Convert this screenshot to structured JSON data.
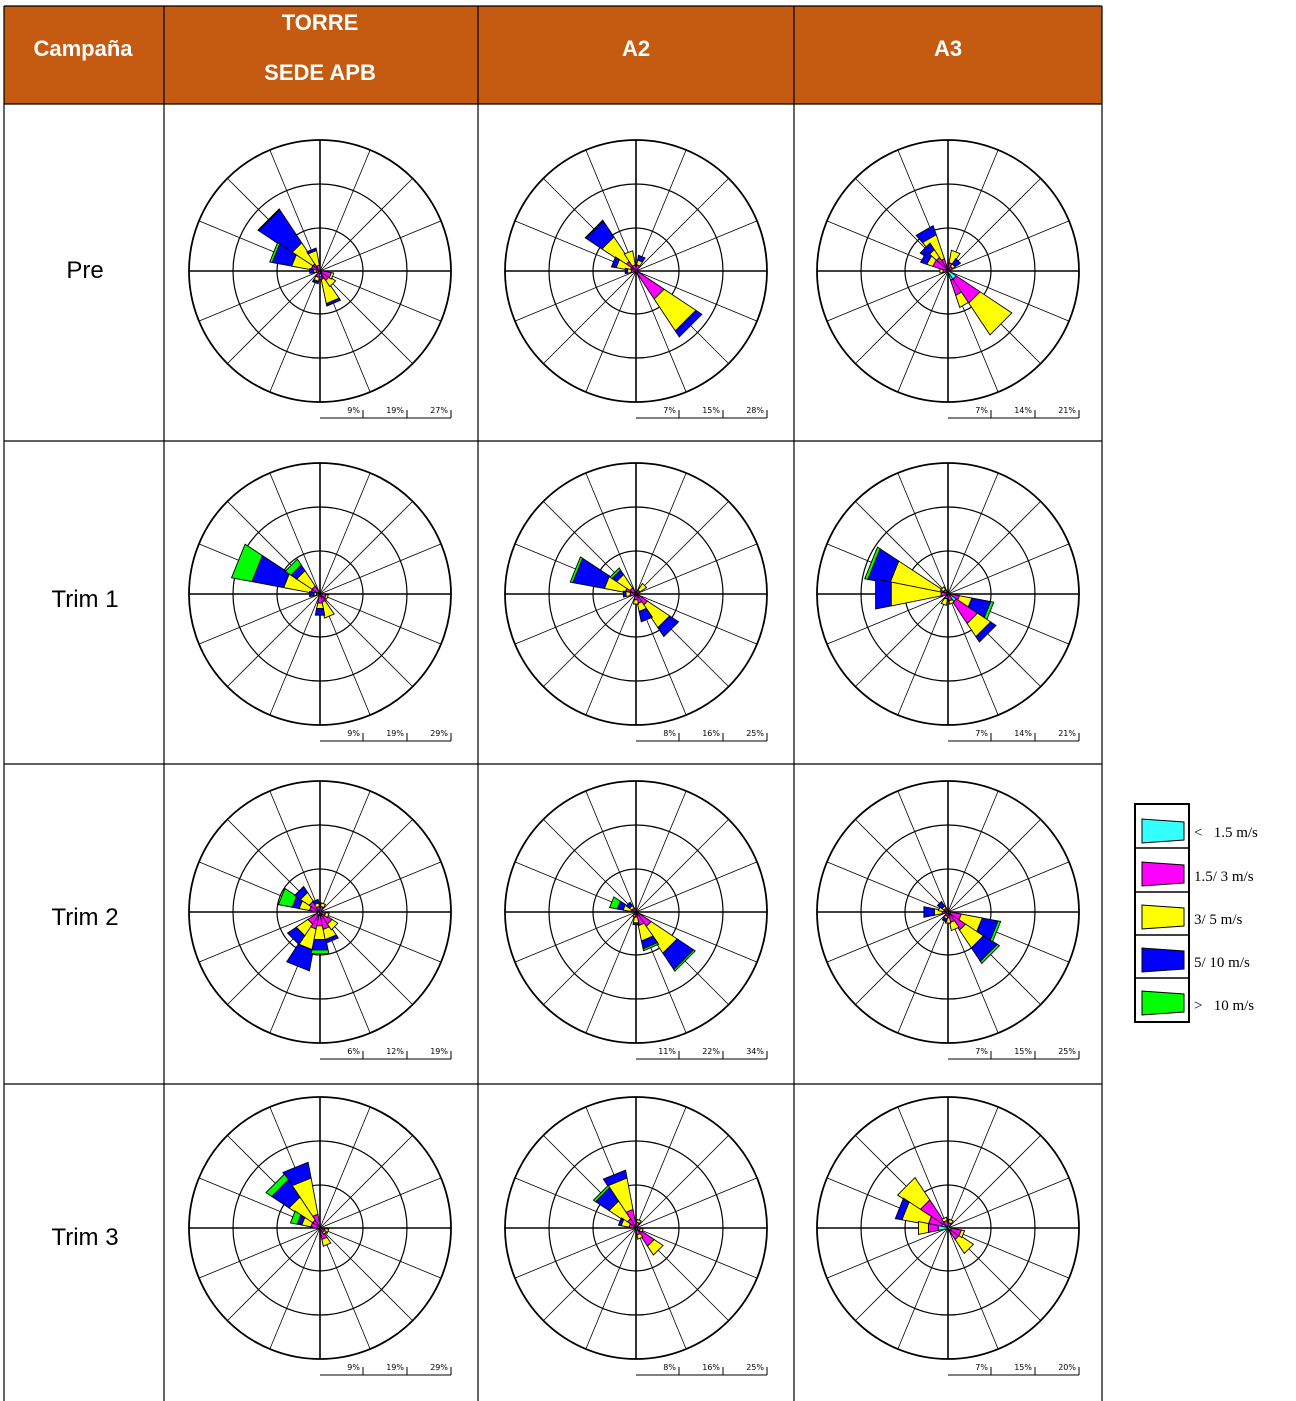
{
  "colors": {
    "header_bg": "#c55a11",
    "calm": "#33ffff",
    "low": "#ff00ff",
    "mid": "#ffff00",
    "high": "#0000ff",
    "top": "#00ff00"
  },
  "header": {
    "campaign": "Campaña",
    "torre_line1": "TORRE",
    "torre_line2": "SEDE APB",
    "a2": "A2",
    "a3": "A3"
  },
  "rows": [
    "Pre",
    "Trim 1",
    "Trim 2",
    "Trim 3"
  ],
  "legend": [
    {
      "label": "<   1.5 m/s",
      "color": "#33ffff"
    },
    {
      "label": "1.5/ 3 m/s",
      "color": "#ff00ff"
    },
    {
      "label": "3/ 5 m/s",
      "color": "#ffff00"
    },
    {
      "label": "5/ 10 m/s",
      "color": "#0000ff"
    },
    {
      "label": ">   10 m/s",
      "color": "#00ff00"
    }
  ],
  "chart_data": [
    {
      "type": "wind-rose",
      "campaign": "Pre",
      "station": "TORRE SEDE APB",
      "scale_labels": [
        "9%",
        "19%",
        "27%"
      ],
      "rmax": 27,
      "dirs": [
        {
          "d": 315,
          "v": [
            0.3,
            1.5,
            5,
            8,
            0.2
          ]
        },
        {
          "d": 292,
          "v": [
            0.3,
            1.5,
            4,
            4,
            0.5
          ]
        },
        {
          "d": 338,
          "v": [
            0.2,
            1,
            3,
            0.5,
            0
          ]
        },
        {
          "d": 157,
          "v": [
            0.2,
            1.5,
            5,
            0.5,
            0
          ]
        },
        {
          "d": 135,
          "v": [
            0.2,
            2,
            1.5,
            0,
            0
          ]
        },
        {
          "d": 112,
          "v": [
            0.3,
            2,
            0.5,
            0,
            0
          ]
        },
        {
          "d": 180,
          "v": [
            1.2,
            0.5,
            0,
            0,
            0
          ]
        },
        {
          "d": 202,
          "v": [
            0.5,
            0.8,
            0.8,
            0.5,
            0
          ]
        },
        {
          "d": 270,
          "v": [
            0.3,
            0.5,
            0.5,
            0.8,
            0
          ]
        }
      ]
    },
    {
      "type": "wind-rose",
      "campaign": "Pre",
      "station": "A2",
      "scale_labels": [
        "7%",
        "15%",
        "28%"
      ],
      "rmax": 28,
      "dirs": [
        {
          "d": 315,
          "v": [
            0.5,
            2,
            6,
            4,
            0.2
          ]
        },
        {
          "d": 338,
          "v": [
            0.3,
            1,
            3,
            0,
            0
          ]
        },
        {
          "d": 135,
          "v": [
            0.5,
            6.5,
            8,
            1.5,
            0
          ]
        },
        {
          "d": 292,
          "v": [
            0.2,
            1,
            3,
            1,
            0
          ]
        },
        {
          "d": 22,
          "v": [
            0.3,
            1,
            1,
            1,
            0
          ]
        },
        {
          "d": 270,
          "v": [
            0.2,
            0.8,
            0.8,
            0.5,
            0
          ]
        }
      ]
    },
    {
      "type": "wind-rose",
      "campaign": "Pre",
      "station": "A3",
      "scale_labels": [
        "7%",
        "14%",
        "21%"
      ],
      "rmax": 21,
      "dirs": [
        {
          "d": 330,
          "v": [
            0.5,
            1.5,
            4,
            1.5,
            0
          ]
        },
        {
          "d": 315,
          "v": [
            0.5,
            2,
            1.5,
            1.2,
            0
          ]
        },
        {
          "d": 300,
          "v": [
            0.5,
            2,
            1,
            1,
            0
          ]
        },
        {
          "d": 22,
          "v": [
            0.3,
            1,
            2,
            0,
            0
          ]
        },
        {
          "d": 45,
          "v": [
            0.3,
            0.5,
            0.5,
            1,
            0
          ]
        },
        {
          "d": 150,
          "v": [
            1.5,
            2.5,
            2,
            0,
            0
          ]
        },
        {
          "d": 135,
          "v": [
            1.5,
            4.5,
            6,
            0,
            0
          ]
        },
        {
          "d": 270,
          "v": [
            0.3,
            0.5,
            0.5,
            0,
            0
          ]
        }
      ]
    },
    {
      "type": "wind-rose",
      "campaign": "Trim 1",
      "station": "TORRE SEDE APB",
      "scale_labels": [
        "9%",
        "19%",
        "29%"
      ],
      "rmax": 29,
      "dirs": [
        {
          "d": 292,
          "v": [
            0.5,
            1.5,
            6,
            7,
            4.5
          ]
        },
        {
          "d": 315,
          "v": [
            0.5,
            1.5,
            4,
            1.5,
            1.5
          ]
        },
        {
          "d": 157,
          "v": [
            0.3,
            1.5,
            3.5,
            0,
            0
          ]
        },
        {
          "d": 180,
          "v": [
            0.5,
            1.5,
            1.2,
            1.5,
            0
          ]
        },
        {
          "d": 112,
          "v": [
            0.3,
            1,
            0.5,
            0,
            0
          ]
        },
        {
          "d": 270,
          "v": [
            0.3,
            0.5,
            0.5,
            1,
            0
          ]
        }
      ]
    },
    {
      "type": "wind-rose",
      "campaign": "Trim 1",
      "station": "A2",
      "scale_labels": [
        "8%",
        "16%",
        "25%"
      ],
      "rmax": 25,
      "dirs": [
        {
          "d": 292,
          "v": [
            0.5,
            1.5,
            4,
            6,
            0.5
          ]
        },
        {
          "d": 315,
          "v": [
            0.3,
            1,
            3,
            1,
            0.5
          ]
        },
        {
          "d": 135,
          "v": [
            0.5,
            2,
            5,
            2,
            0
          ]
        },
        {
          "d": 157,
          "v": [
            0.3,
            1.5,
            1.5,
            2,
            0
          ]
        },
        {
          "d": 180,
          "v": [
            0.3,
            0.8,
            0.8,
            0,
            0
          ]
        },
        {
          "d": 45,
          "v": [
            0.3,
            0.5,
            1.5,
            0,
            0
          ]
        },
        {
          "d": 270,
          "v": [
            0.3,
            0.8,
            0.8,
            0.5,
            0
          ]
        }
      ]
    },
    {
      "type": "wind-rose",
      "campaign": "Trim 1",
      "station": "A3",
      "scale_labels": [
        "7%",
        "14%",
        "21%"
      ],
      "rmax": 21,
      "dirs": [
        {
          "d": 292,
          "v": [
            0.3,
            1,
            8,
            3.5,
            0.5
          ]
        },
        {
          "d": 270,
          "v": [
            0.3,
            0.8,
            8,
            2.5,
            0
          ]
        },
        {
          "d": 112,
          "v": [
            0.3,
            1.5,
            2,
            3,
            0.5
          ]
        },
        {
          "d": 135,
          "v": [
            1.5,
            4,
            2.5,
            1,
            0
          ]
        },
        {
          "d": 315,
          "v": [
            0.3,
            0.5,
            0.5,
            0,
            0
          ]
        },
        {
          "d": 202,
          "v": [
            0.3,
            0.5,
            1,
            0,
            0
          ]
        },
        {
          "d": 157,
          "v": [
            0.3,
            0.8,
            0.5,
            0,
            0
          ]
        }
      ]
    },
    {
      "type": "wind-rose",
      "campaign": "Trim 2",
      "station": "TORRE SEDE APB",
      "scale_labels": [
        "6%",
        "12%",
        "19%"
      ],
      "rmax": 19,
      "dirs": [
        {
          "d": 202,
          "v": [
            0.5,
            2,
            3,
            3,
            0
          ]
        },
        {
          "d": 180,
          "v": [
            0.5,
            1.5,
            2,
            1.5,
            0.5
          ]
        },
        {
          "d": 292,
          "v": [
            0.5,
            1,
            1.5,
            1,
            2
          ]
        },
        {
          "d": 315,
          "v": [
            0.3,
            1.5,
            1.5,
            1,
            0
          ]
        },
        {
          "d": 225,
          "v": [
            0.5,
            1.5,
            2,
            1.5,
            0
          ]
        },
        {
          "d": 157,
          "v": [
            0.5,
            2,
            1.5,
            0.5,
            0
          ]
        },
        {
          "d": 135,
          "v": [
            0.5,
            1.5,
            1,
            0,
            0
          ]
        },
        {
          "d": 112,
          "v": [
            0.3,
            0.5,
            0.5,
            0,
            0
          ]
        },
        {
          "d": 338,
          "v": [
            0.3,
            0.5,
            0.5,
            0.5,
            0
          ]
        },
        {
          "d": 22,
          "v": [
            0.3,
            0.5,
            0.5,
            0,
            0
          ]
        }
      ]
    },
    {
      "type": "wind-rose",
      "campaign": "Trim 2",
      "station": "A2",
      "scale_labels": [
        "11%",
        "22%",
        "34%"
      ],
      "rmax": 34,
      "dirs": [
        {
          "d": 135,
          "v": [
            0.5,
            4,
            8,
            5,
            0.5
          ]
        },
        {
          "d": 157,
          "v": [
            0.5,
            3,
            4,
            2,
            0.5
          ]
        },
        {
          "d": 292,
          "v": [
            0.3,
            1,
            2,
            1.5,
            2
          ]
        },
        {
          "d": 315,
          "v": [
            0.3,
            0.8,
            0.8,
            1,
            0
          ]
        },
        {
          "d": 180,
          "v": [
            0.3,
            1,
            1.5,
            0.5,
            0
          ]
        },
        {
          "d": 202,
          "v": [
            0.3,
            0.5,
            0.5,
            0,
            0
          ]
        }
      ]
    },
    {
      "type": "wind-rose",
      "campaign": "Trim 2",
      "station": "A3",
      "scale_labels": [
        "7%",
        "15%",
        "25%"
      ],
      "rmax": 25,
      "dirs": [
        {
          "d": 135,
          "v": [
            1,
            3,
            4,
            3,
            0.5
          ]
        },
        {
          "d": 112,
          "v": [
            0.5,
            2,
            4,
            3,
            0.5
          ]
        },
        {
          "d": 157,
          "v": [
            0.5,
            1.5,
            1.5,
            0,
            0
          ]
        },
        {
          "d": 270,
          "v": [
            0.3,
            0.8,
            1.5,
            2,
            0
          ]
        },
        {
          "d": 292,
          "v": [
            0.3,
            0.5,
            1,
            0,
            0
          ]
        },
        {
          "d": 315,
          "v": [
            0.3,
            0.5,
            0.5,
            1,
            0
          ]
        },
        {
          "d": 180,
          "v": [
            0.3,
            0.8,
            1,
            0,
            0
          ]
        },
        {
          "d": 202,
          "v": [
            0.3,
            0.5,
            0.5,
            0.5,
            0
          ]
        }
      ]
    },
    {
      "type": "wind-rose",
      "campaign": "Trim 3",
      "station": "TORRE SEDE APB",
      "scale_labels": [
        "9%",
        "19%",
        "29%"
      ],
      "rmax": 29,
      "dirs": [
        {
          "d": 338,
          "v": [
            0.5,
            2.5,
            8,
            3.5,
            0
          ]
        },
        {
          "d": 315,
          "v": [
            0.5,
            1.5,
            6,
            4.5,
            1.5
          ]
        },
        {
          "d": 292,
          "v": [
            0.5,
            1.5,
            2,
            1,
            1.5
          ]
        },
        {
          "d": 157,
          "v": [
            0.5,
            2,
            1.5,
            0,
            0
          ]
        },
        {
          "d": 112,
          "v": [
            0.3,
            0.8,
            0.8,
            0,
            0
          ]
        },
        {
          "d": 135,
          "v": [
            0.3,
            0.8,
            0.5,
            0,
            0
          ]
        }
      ]
    },
    {
      "type": "wind-rose",
      "campaign": "Trim 3",
      "station": "A2",
      "scale_labels": [
        "8%",
        "16%",
        "25%"
      ],
      "rmax": 25,
      "dirs": [
        {
          "d": 338,
          "v": [
            0.5,
            3,
            6,
            1.5,
            0
          ]
        },
        {
          "d": 315,
          "v": [
            0.5,
            1.5,
            4,
            3,
            0.5
          ]
        },
        {
          "d": 292,
          "v": [
            0.3,
            1,
            1.5,
            0.5,
            0
          ]
        },
        {
          "d": 135,
          "v": [
            0.5,
            3.5,
            2,
            0,
            0
          ]
        },
        {
          "d": 157,
          "v": [
            0.5,
            0.8,
            0.8,
            0,
            0
          ]
        },
        {
          "d": 22,
          "v": [
            0.3,
            0.8,
            0.5,
            0,
            0
          ]
        },
        {
          "d": 112,
          "v": [
            0.3,
            0.5,
            0.5,
            0,
            0
          ]
        }
      ]
    },
    {
      "type": "wind-rose",
      "campaign": "Trim 3",
      "station": "A3",
      "scale_labels": [
        "7%",
        "15%",
        "20%"
      ],
      "rmax": 20,
      "dirs": [
        {
          "d": 315,
          "v": [
            1,
            4,
            4,
            0,
            0
          ]
        },
        {
          "d": 292,
          "v": [
            1,
            2,
            4,
            1,
            0
          ]
        },
        {
          "d": 270,
          "v": [
            1.5,
            1.5,
            1.5,
            0,
            0
          ]
        },
        {
          "d": 135,
          "v": [
            0.5,
            1.5,
            2.5,
            0,
            0
          ]
        },
        {
          "d": 112,
          "v": [
            0.5,
            1.5,
            0.5,
            0,
            0
          ]
        },
        {
          "d": 338,
          "v": [
            0.3,
            0.8,
            0.5,
            0,
            0
          ]
        },
        {
          "d": 22,
          "v": [
            0.3,
            0.5,
            0.5,
            0,
            0
          ]
        }
      ]
    }
  ]
}
